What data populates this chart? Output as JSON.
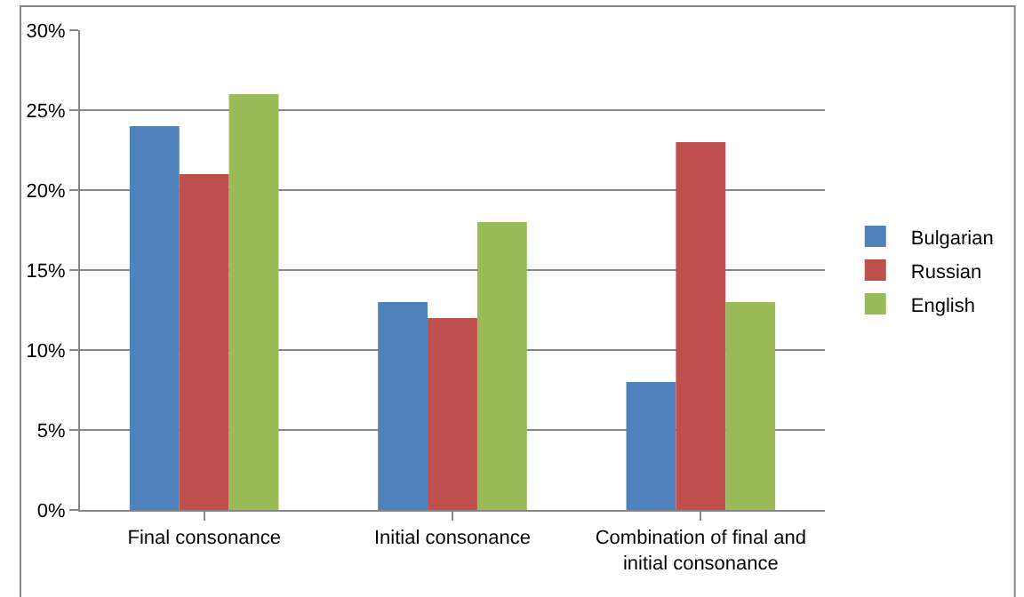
{
  "chart_data": {
    "type": "bar",
    "categories": [
      "Final consonance",
      "Initial consonance",
      "Combination of final and initial consonance"
    ],
    "series": [
      {
        "name": "Bulgarian",
        "color": "#4f81bd",
        "values": [
          24,
          13,
          8
        ]
      },
      {
        "name": "Russian",
        "color": "#c0504d",
        "values": [
          21,
          12,
          23
        ]
      },
      {
        "name": "English",
        "color": "#9bbb59",
        "values": [
          26,
          18,
          13
        ]
      }
    ],
    "ylim": [
      0,
      30
    ],
    "yticks": [
      {
        "value": 0,
        "label": "0%"
      },
      {
        "value": 5,
        "label": "5%"
      },
      {
        "value": 10,
        "label": "10%"
      },
      {
        "value": 15,
        "label": "15%"
      },
      {
        "value": 20,
        "label": "20%"
      },
      {
        "value": 25,
        "label": "25%"
      },
      {
        "value": 30,
        "label": "30%"
      }
    ],
    "grid": "y",
    "legend": "right"
  }
}
